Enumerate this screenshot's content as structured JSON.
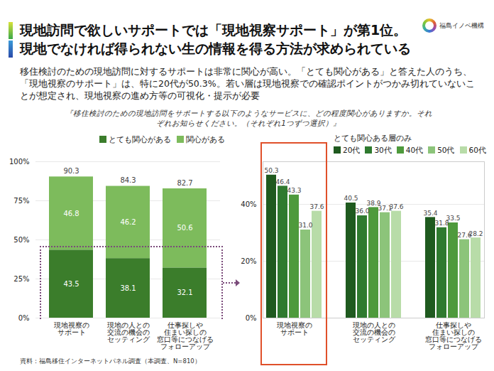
{
  "page": {
    "title": [
      "現地訪問で欲しいサポートでは「現地視察サポート」が第1位。",
      "現地でなければ得られない生の情報を得る方法が求められている"
    ],
    "logo": "福島イノベ機構",
    "subtitle": "移住検討のための現地訪問に対するサポートは非常に関心が高い。「とても関心がある」と答えた人のうち、「現地視察のサポート」は、特に20代が50.3%。若い層は現地視察での確認ポイントがつかみ切れていないことが想定され、現地視察の進め方等の可視化・提示が必要",
    "question": "『移住検討のための現地訪問をサポートする以下のようなサービスに、どの程度関心がありますか。それぞれお知らせください。（それぞれ1つずつ選択）』",
    "source": "資料：福島移住インターネットパネル調査（本調査、N=810）"
  },
  "chart_data": [
    {
      "type": "bar",
      "stacked": true,
      "categories": [
        "現地視察の\nサポート",
        "現地の人との\n交流の機会の\nセッティング",
        "仕事探しや\n住まい探しの\n窓口等につなげる\nフォローアップ"
      ],
      "series": [
        {
          "name": "とても関心がある",
          "color": "#3b7d2b",
          "values": [
            43.5,
            38.1,
            32.1
          ]
        },
        {
          "name": "関心がある",
          "color": "#7dbb5c",
          "values": [
            46.8,
            46.2,
            50.6
          ]
        }
      ],
      "totals": [
        90.3,
        84.3,
        82.7
      ],
      "ylim": [
        0,
        100
      ],
      "yticks": [
        {
          "value": 0,
          "label": "0%"
        },
        {
          "value": 25,
          "label": "25%"
        },
        {
          "value": 50,
          "label": "50%"
        },
        {
          "value": 75,
          "label": "75%"
        },
        {
          "value": 100,
          "label": "100%"
        }
      ],
      "grid": true,
      "data_labels": true,
      "legend": "top"
    },
    {
      "type": "bar",
      "title": "とても関心ある層のみ",
      "categories": [
        "現地視察の\nサポート",
        "現地の人との\n交流の機会の\nセッティング",
        "仕事探しや\n住まい探しの\n窓口等につなげる\nフォローアップ"
      ],
      "series": [
        {
          "name": "20代",
          "color": "#1f5a1f",
          "values": [
            50.3,
            40.5,
            35.4
          ],
          "value_labels": [
            "50.3",
            "40.5",
            "35.4"
          ]
        },
        {
          "name": "30代",
          "color": "#2f7a2f",
          "values": [
            46.4,
            36.0,
            31.8
          ],
          "value_labels": [
            "46.4",
            "36.0",
            "31.8"
          ]
        },
        {
          "name": "40代",
          "color": "#4e9a3c",
          "values": [
            43.3,
            38.9,
            33.5
          ],
          "value_labels": [
            "43.3",
            "38.9",
            "33.5"
          ]
        },
        {
          "name": "50代",
          "color": "#8cc47a",
          "values": [
            31.0,
            37.1,
            27.6
          ],
          "value_labels": [
            "31.0",
            "37.1",
            "27.6"
          ]
        },
        {
          "name": "60代",
          "color": "#b8dca8",
          "values": [
            37.6,
            37.6,
            28.2
          ],
          "value_labels": [
            "37.6",
            "37.6",
            "28.2"
          ]
        }
      ],
      "ylim": [
        0,
        55
      ],
      "yticks": [
        {
          "value": 0,
          "label": "0%"
        },
        {
          "value": 20,
          "label": "20%"
        },
        {
          "value": 40,
          "label": "40%"
        }
      ],
      "grid": true,
      "data_labels": true,
      "legend": "top"
    }
  ]
}
